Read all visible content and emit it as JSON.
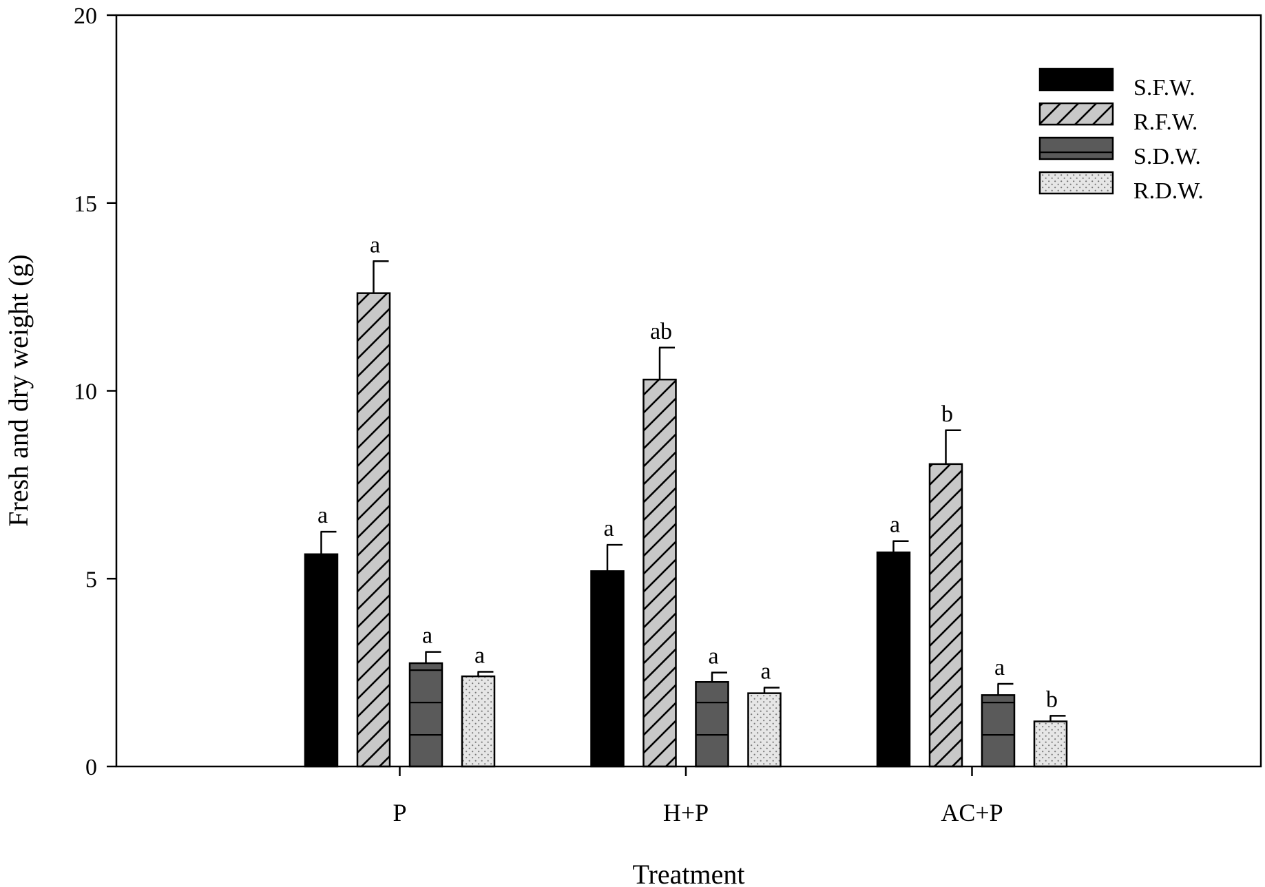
{
  "chart_data": {
    "type": "bar",
    "title": "",
    "xlabel": "Treatment",
    "ylabel": "Fresh and dry weight (g)",
    "ylim": [
      0,
      20
    ],
    "yticks": [
      0,
      5,
      10,
      15,
      20
    ],
    "categories": [
      "P",
      "H+P",
      "AC+P"
    ],
    "legend_position": "top-right",
    "series": [
      {
        "name": "S.F.W.",
        "pattern": "solid-black",
        "values": [
          5.65,
          5.2,
          5.7
        ],
        "errors": [
          0.6,
          0.7,
          0.3
        ],
        "labels": [
          "a",
          "a",
          "a"
        ]
      },
      {
        "name": "R.F.W.",
        "pattern": "diagonal-hatch",
        "values": [
          12.6,
          10.3,
          8.05
        ],
        "errors": [
          0.85,
          0.85,
          0.9
        ],
        "labels": [
          "a",
          "ab",
          "b"
        ]
      },
      {
        "name": "S.D.W.",
        "pattern": "horizontal-lines",
        "values": [
          2.75,
          2.25,
          1.9
        ],
        "errors": [
          0.3,
          0.25,
          0.3
        ],
        "labels": [
          "a",
          "a",
          "a"
        ]
      },
      {
        "name": "R.D.W.",
        "pattern": "dotted",
        "values": [
          2.4,
          1.95,
          1.2
        ],
        "errors": [
          0.12,
          0.15,
          0.15
        ],
        "labels": [
          "a",
          "a",
          "b"
        ]
      }
    ],
    "colors": {
      "solid": "#000000",
      "hatch_fill": "#c8c8c8",
      "stripe_fill": "#5a5a5a",
      "dot_fill": "#e6e6e6"
    }
  }
}
